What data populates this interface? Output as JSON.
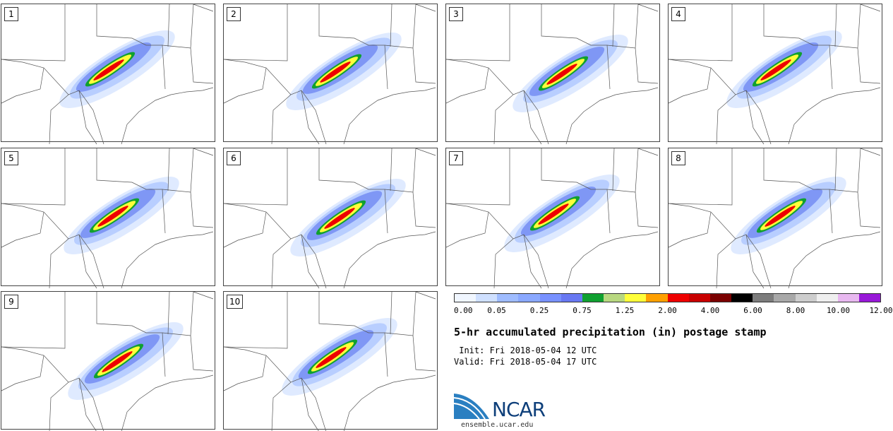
{
  "panels": [
    {
      "label": "1"
    },
    {
      "label": "2"
    },
    {
      "label": "3"
    },
    {
      "label": "4"
    },
    {
      "label": "5"
    },
    {
      "label": "6"
    },
    {
      "label": "7"
    },
    {
      "label": "8"
    },
    {
      "label": "9"
    },
    {
      "label": "10"
    }
  ],
  "colorbar": {
    "colors": [
      "#f0f6ff",
      "#cfe0ff",
      "#9fbcff",
      "#8aa8ff",
      "#7891ff",
      "#6878f2",
      "#10a030",
      "#b8d880",
      "#ffff3a",
      "#ffa000",
      "#ee0000",
      "#c80000",
      "#7a0000",
      "#000000",
      "#7c7c7c",
      "#a8a8a8",
      "#cdcdcd",
      "#efefef",
      "#e8b8f0",
      "#9818d8"
    ],
    "labels": [
      "0.00",
      "0.05",
      "0.25",
      "0.75",
      "1.25",
      "2.00",
      "4.00",
      "6.00",
      "8.00",
      "10.00",
      "12.00"
    ]
  },
  "title": "5-hr accumulated precipitation (in) postage stamp",
  "init": " Init: Fri 2018-05-04 12 UTC",
  "valid": "Valid: Fri 2018-05-04 17 UTC",
  "logo": {
    "text": "NCAR",
    "url": "ensemble.ucar.edu"
  }
}
